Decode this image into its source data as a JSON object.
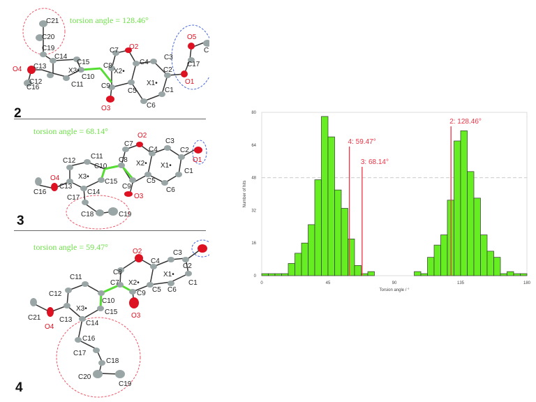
{
  "panels": [
    {
      "label": "2",
      "torsion_text": "torsion angle = 128.46°"
    },
    {
      "label": "3",
      "torsion_text": "torsion angle = 68.14°"
    },
    {
      "label": "4",
      "torsion_text": "torsion angle = 59.47°"
    }
  ],
  "colors": {
    "bar": "#66ee22",
    "marker": "#ee3344",
    "torsion_text": "#6fe04a",
    "atom_o": "#dd1122",
    "atom_c": "#9aa6a6",
    "ring_circle_red": "#ee5566",
    "ring_circle_blue": "#4466dd"
  },
  "chart_data": {
    "type": "bar",
    "title": "",
    "xlabel": "Torsion angle / °",
    "ylabel": "Number of hits",
    "xlim": [
      0,
      180
    ],
    "ylim": [
      0,
      80
    ],
    "xticks": [
      0,
      45,
      90,
      135,
      180
    ],
    "yticks": [
      0,
      16,
      32,
      48,
      64,
      80
    ],
    "bin_width": 4.5,
    "bins_start": [
      0,
      4.5,
      9,
      13.5,
      18,
      22.5,
      27,
      31.5,
      36,
      40.5,
      45,
      49.5,
      54,
      58.5,
      63,
      67.5,
      72,
      103.5,
      108,
      112.5,
      117,
      121.5,
      126,
      130.5,
      135,
      139.5,
      144,
      148.5,
      153,
      157.5,
      162,
      166.5,
      171,
      175.5
    ],
    "values": [
      1,
      1,
      1,
      1,
      6,
      11,
      16,
      25,
      47,
      78,
      68,
      42,
      33,
      18,
      5,
      1,
      2,
      2,
      1,
      9,
      15,
      20,
      37,
      66,
      71,
      51,
      38,
      20,
      12,
      9,
      1,
      2,
      1,
      1
    ],
    "reference_lines": [
      {
        "label": "4: 59.47°",
        "x": 59.47
      },
      {
        "label": "3: 68.14°",
        "x": 68.14
      },
      {
        "label": "2: 128.46°",
        "x": 128.46
      }
    ],
    "grid": {
      "horizontal_dashed_at": 48
    },
    "legend": null
  }
}
